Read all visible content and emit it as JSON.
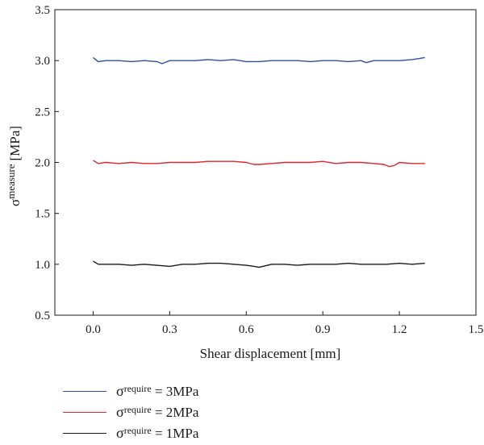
{
  "chart_data": {
    "type": "line",
    "title": "",
    "xlabel": "Shear displacement [mm]",
    "ylabel_symbol": "σ",
    "ylabel_superscript": "measure",
    "ylabel_unit": "[MPa]",
    "xlim": [
      -0.15,
      1.5
    ],
    "ylim": [
      0.5,
      3.5
    ],
    "xticks": [
      0.0,
      0.3,
      0.6,
      0.9,
      1.2,
      1.5
    ],
    "xtick_labels": [
      "0.0",
      "0.3",
      "0.6",
      "0.9",
      "1.2",
      "1.5"
    ],
    "yticks": [
      0.5,
      1.0,
      1.5,
      2.0,
      2.5,
      3.0,
      3.5
    ],
    "ytick_labels": [
      "0.5",
      "1.0",
      "1.5",
      "2.0",
      "2.5",
      "3.0",
      "3.5"
    ],
    "legend_position": "below-left",
    "series": [
      {
        "symbol": "σ",
        "superscript": "require",
        "value_text": " = 3MPa",
        "color": "#2e4fa8",
        "x": [
          0.0,
          0.02,
          0.05,
          0.1,
          0.15,
          0.2,
          0.25,
          0.27,
          0.3,
          0.35,
          0.4,
          0.45,
          0.5,
          0.55,
          0.6,
          0.65,
          0.7,
          0.75,
          0.8,
          0.85,
          0.9,
          0.95,
          1.0,
          1.05,
          1.07,
          1.1,
          1.15,
          1.2,
          1.25,
          1.3
        ],
        "y": [
          3.03,
          2.99,
          3.0,
          3.0,
          2.99,
          3.0,
          2.99,
          2.97,
          3.0,
          3.0,
          3.0,
          3.01,
          3.0,
          3.01,
          2.99,
          2.99,
          3.0,
          3.0,
          3.0,
          2.99,
          3.0,
          3.0,
          2.99,
          3.0,
          2.98,
          3.0,
          3.0,
          3.0,
          3.01,
          3.03
        ]
      },
      {
        "symbol": "σ",
        "superscript": "require",
        "value_text": " = 2MPa",
        "color": "#e3242b",
        "x": [
          0.0,
          0.02,
          0.05,
          0.1,
          0.15,
          0.2,
          0.25,
          0.3,
          0.35,
          0.4,
          0.45,
          0.5,
          0.55,
          0.6,
          0.63,
          0.65,
          0.7,
          0.75,
          0.8,
          0.85,
          0.9,
          0.95,
          1.0,
          1.05,
          1.1,
          1.14,
          1.16,
          1.18,
          1.2,
          1.25,
          1.3
        ],
        "y": [
          2.02,
          1.99,
          2.0,
          1.99,
          2.0,
          1.99,
          1.99,
          2.0,
          2.0,
          2.0,
          2.01,
          2.01,
          2.01,
          2.0,
          1.98,
          1.98,
          1.99,
          2.0,
          2.0,
          2.0,
          2.01,
          1.99,
          2.0,
          2.0,
          1.99,
          1.98,
          1.96,
          1.97,
          2.0,
          1.99,
          1.99
        ]
      },
      {
        "symbol": "σ",
        "superscript": "require",
        "value_text": " = 1MPa",
        "color": "#1a1a1a",
        "x": [
          0.0,
          0.02,
          0.05,
          0.1,
          0.15,
          0.2,
          0.25,
          0.3,
          0.35,
          0.4,
          0.45,
          0.5,
          0.55,
          0.6,
          0.63,
          0.65,
          0.7,
          0.75,
          0.8,
          0.85,
          0.9,
          0.95,
          1.0,
          1.05,
          1.1,
          1.15,
          1.2,
          1.25,
          1.3
        ],
        "y": [
          1.03,
          1.0,
          1.0,
          1.0,
          0.99,
          1.0,
          0.99,
          0.98,
          1.0,
          1.0,
          1.01,
          1.01,
          1.0,
          0.99,
          0.98,
          0.97,
          1.0,
          1.0,
          0.99,
          1.0,
          1.0,
          1.0,
          1.01,
          1.0,
          1.0,
          1.0,
          1.01,
          1.0,
          1.01
        ]
      }
    ]
  }
}
